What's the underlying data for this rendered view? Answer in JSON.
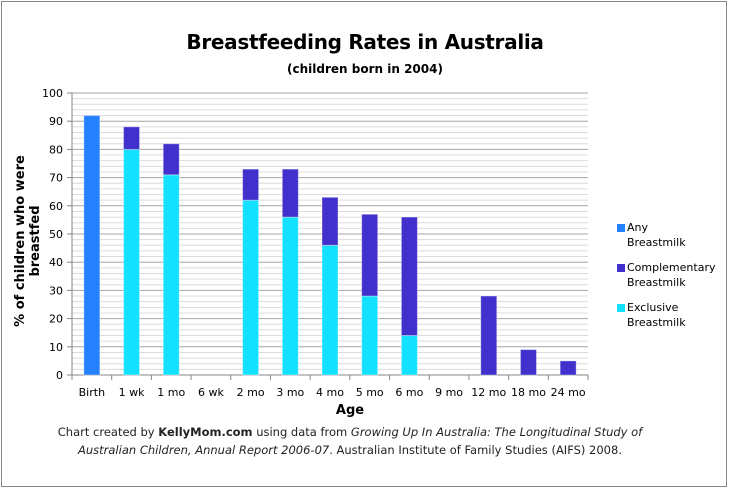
{
  "chart_data": {
    "type": "bar",
    "stacked": true,
    "title": "Breastfeeding Rates in Australia",
    "subtitle": "(children born in 2004)",
    "xlabel": "Age",
    "ylabel": "% of children who were breastfed",
    "ylim": [
      0,
      100
    ],
    "yticks": [
      0,
      10,
      20,
      30,
      40,
      50,
      60,
      70,
      80,
      90,
      100
    ],
    "grid": true,
    "legend_position": "right",
    "categories": [
      "Birth",
      "1 wk",
      "1 mo",
      "6 wk",
      "2 mo",
      "3 mo",
      "4 mo",
      "5 mo",
      "6 mo",
      "9 mo",
      "12 mo",
      "18 mo",
      "24 mo"
    ],
    "series": [
      {
        "name": "Any Breastmilk",
        "label_line1": "Any",
        "label_line2": "Breastmilk",
        "color": "#2581FF",
        "values": [
          92,
          null,
          null,
          null,
          null,
          null,
          null,
          null,
          null,
          null,
          null,
          null,
          null
        ]
      },
      {
        "name": "Exclusive Breastmilk",
        "label_line1": "Exclusive",
        "label_line2": "Breastmilk",
        "color": "#14E1FF",
        "values": [
          null,
          80,
          71,
          null,
          62,
          56,
          46,
          28,
          14,
          null,
          null,
          null,
          null
        ]
      },
      {
        "name": "Complementary Breastmilk",
        "label_line1": "Complementary",
        "label_line2": "Breastmilk",
        "color": "#4130CC",
        "values": [
          null,
          8,
          11,
          null,
          11,
          17,
          17,
          29,
          42,
          null,
          28,
          9,
          5
        ]
      }
    ]
  },
  "legend_order": [
    0,
    2,
    1
  ],
  "credit": {
    "prefix": "Chart created by ",
    "brand": "KellyMom.com",
    "middle": " using data from ",
    "source_italic": "Growing Up In Australia: The Longitudinal Study of Australian Children, Annual Report 2006-07",
    "suffix": ". Australian Institute of Family Studies (AIFS) 2008."
  }
}
